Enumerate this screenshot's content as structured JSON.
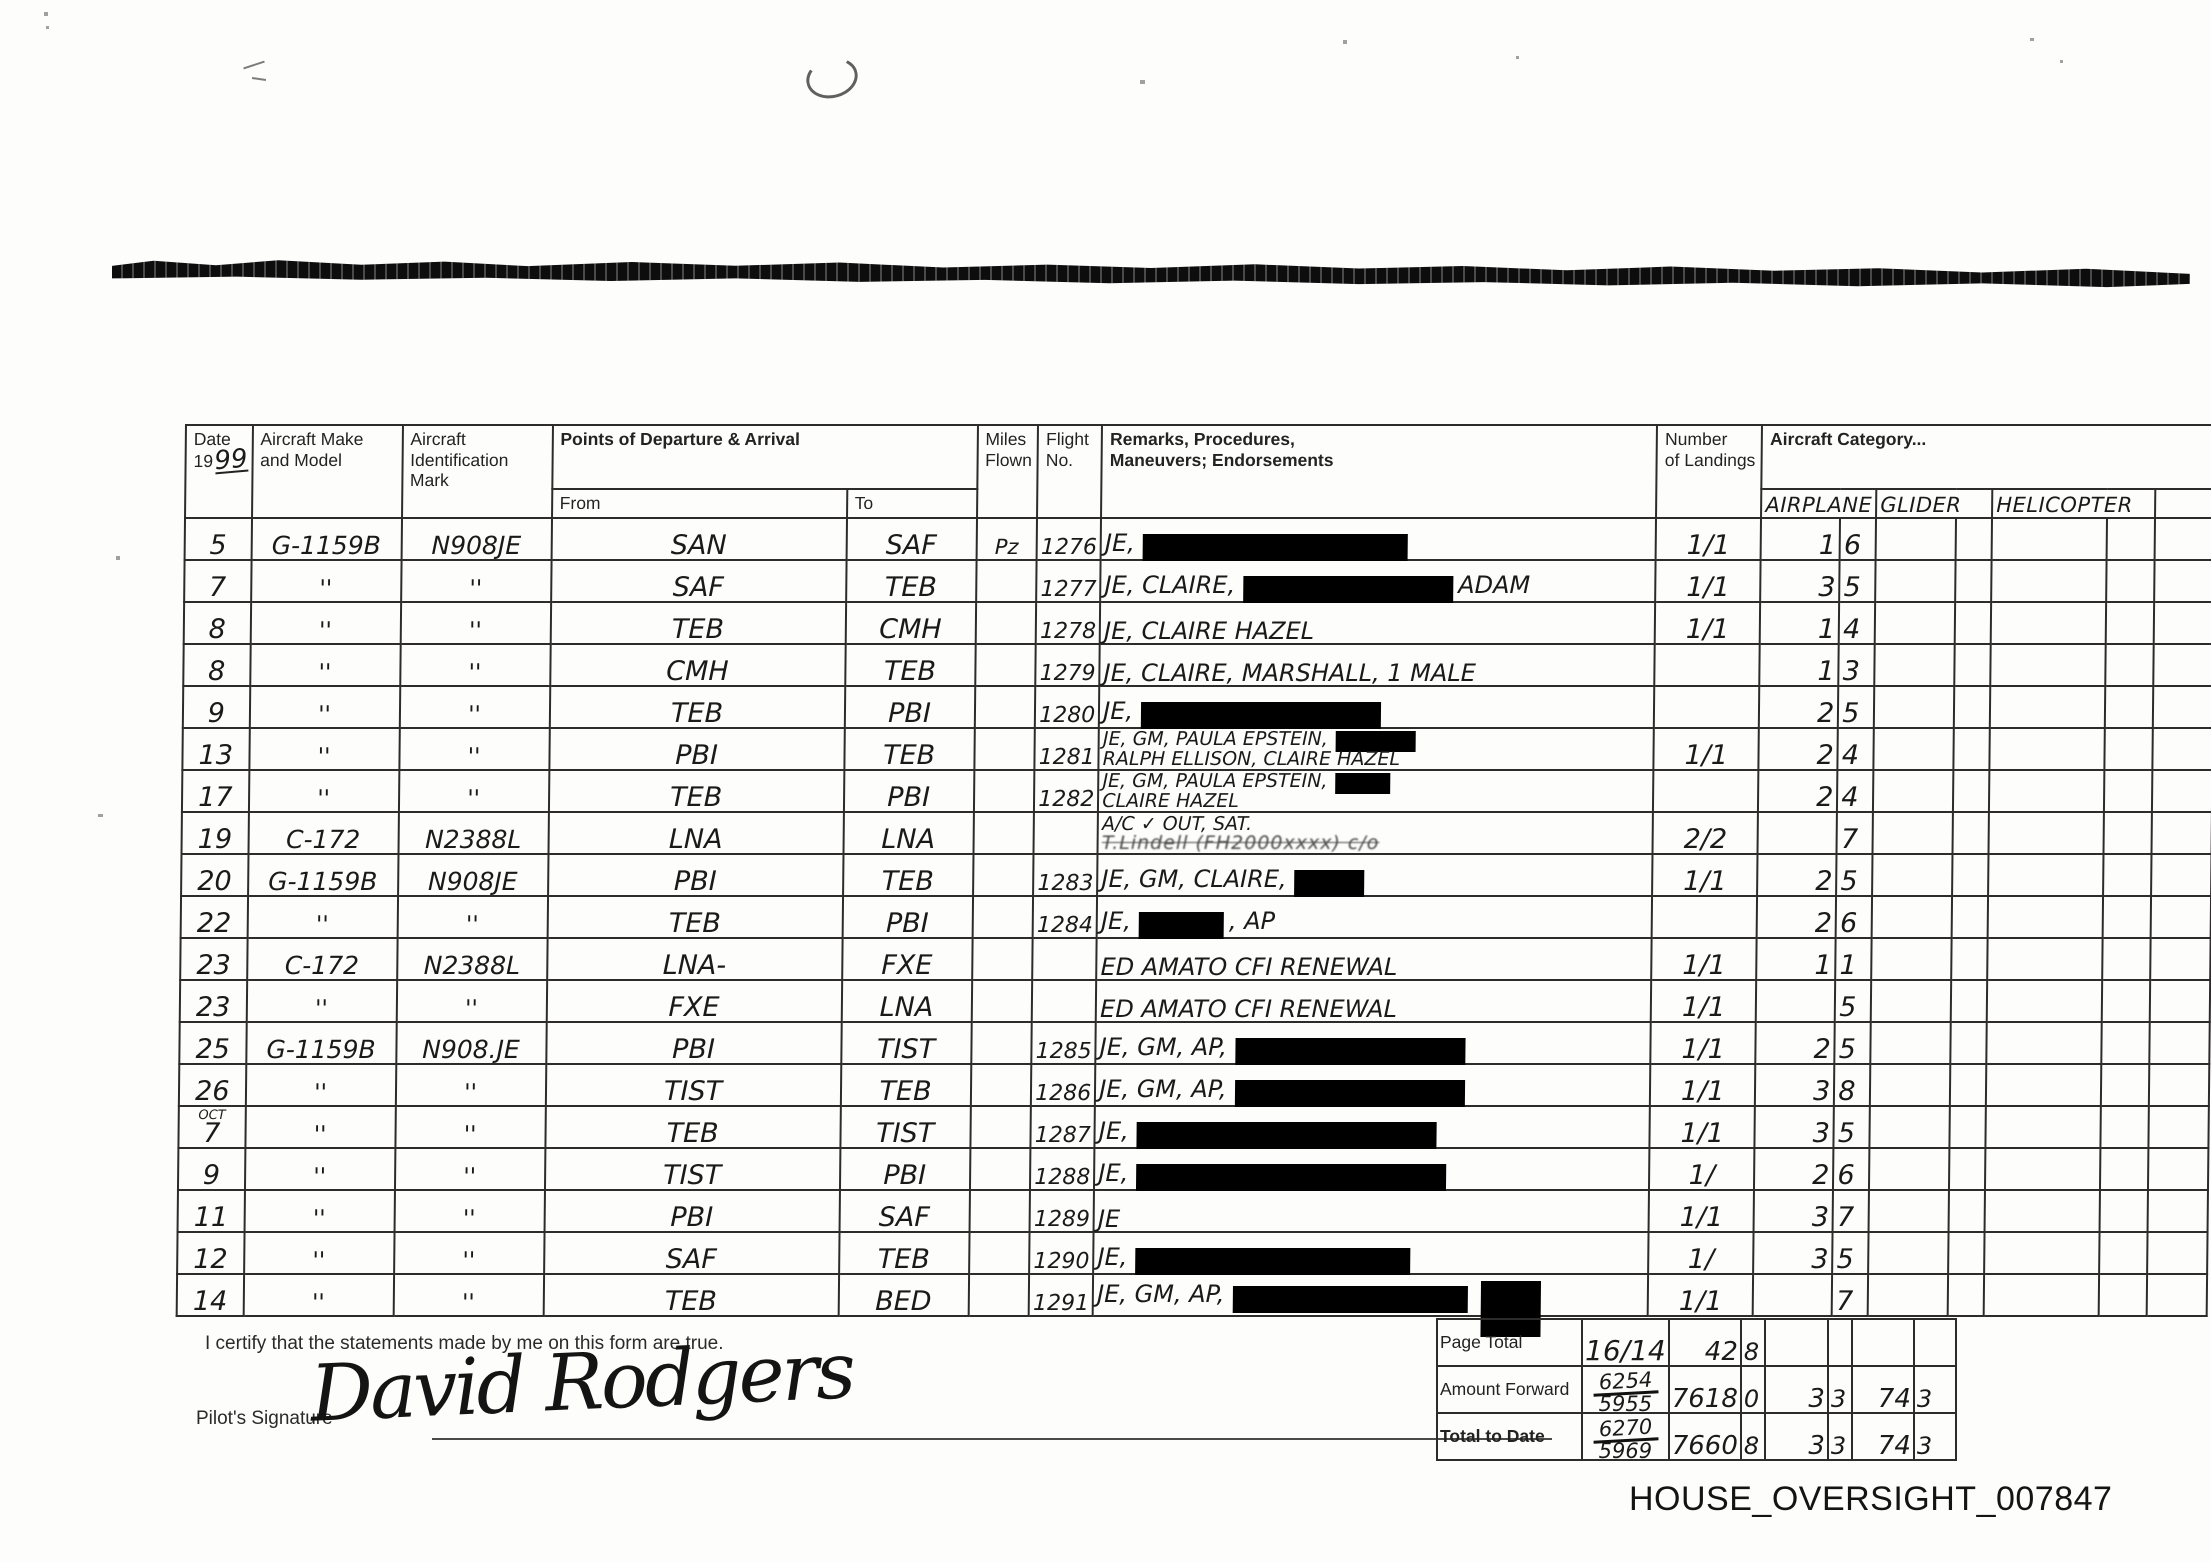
{
  "header": {
    "date_label": "Date",
    "date_year_prefix": "19",
    "date_year_hw": "99",
    "make": "Aircraft Make\nand Model",
    "ident": "Aircraft\nIdentification Mark",
    "points": "Points of Departure & Arrival",
    "from": "From",
    "to": "To",
    "miles": "Miles\nFlown",
    "flight": "Flight\nNo.",
    "remarks": "Remarks, Procedures,\nManeuvers; Endorsements",
    "landings": "Number\nof Landings",
    "category": "Aircraft Category...",
    "cat_airplane": "AIRPLANE",
    "cat_glider": "GLIDER",
    "cat_helicopter": "HELICOPTER"
  },
  "rows": [
    {
      "date": "5",
      "make": "G-1159B",
      "ident": "N908JE",
      "from": "SAN",
      "to": "SAF",
      "miles": "Pz",
      "flight": "1276",
      "remarks": [
        {
          "t1": "JE,",
          "r": 265
        }
      ],
      "landings": "1/1",
      "airplane_h": "1",
      "airplane_t": "6"
    },
    {
      "date": "7",
      "make": "''",
      "ident": "''",
      "from": "SAF",
      "to": "TEB",
      "miles": "",
      "flight": "1277",
      "remarks": [
        {
          "t1": "JE, CLAIRE,",
          "r": 210,
          "t2": "ADAM"
        }
      ],
      "landings": "1/1",
      "airplane_h": "3",
      "airplane_t": "5"
    },
    {
      "date": "8",
      "make": "''",
      "ident": "''",
      "from": "TEB",
      "to": "CMH",
      "miles": "",
      "flight": "1278",
      "remarks": [
        {
          "t1": "JE, CLAIRE HAZEL"
        }
      ],
      "landings": "1/1",
      "airplane_h": "1",
      "airplane_t": "4"
    },
    {
      "date": "8",
      "make": "''",
      "ident": "''",
      "from": "CMH",
      "to": "TEB",
      "miles": "",
      "flight": "1279",
      "remarks": [
        {
          "t1": "JE, CLAIRE, MARSHALL, 1 MALE"
        }
      ],
      "landings": "",
      "airplane_h": "1",
      "airplane_t": "3"
    },
    {
      "date": "9",
      "make": "''",
      "ident": "''",
      "from": "TEB",
      "to": "PBI",
      "miles": "",
      "flight": "1280",
      "remarks": [
        {
          "t1": "JE,",
          "r": 240
        }
      ],
      "landings": "",
      "airplane_h": "2",
      "airplane_t": "5"
    },
    {
      "date": "13",
      "make": "''",
      "ident": "''",
      "from": "PBI",
      "to": "TEB",
      "miles": "",
      "flight": "1281",
      "remarks": [
        {
          "t1": "JE, GM, PAULA EPSTEIN,",
          "r": 80
        },
        {
          "t1": "RALPH ELLISON, CLAIRE HAZEL"
        }
      ],
      "landings": "1/1",
      "airplane_h": "2",
      "airplane_t": "4"
    },
    {
      "date": "17",
      "make": "''",
      "ident": "''",
      "from": "TEB",
      "to": "PBI",
      "miles": "",
      "flight": "1282",
      "remarks": [
        {
          "t1": "JE, GM, PAULA EPSTEIN,",
          "r": 55
        },
        {
          "t1": "CLAIRE HAZEL"
        }
      ],
      "landings": "",
      "airplane_h": "2",
      "airplane_t": "4"
    },
    {
      "date": "19",
      "make": "C-172",
      "ident": "N2388L",
      "from": "LNA",
      "to": "LNA",
      "miles": "",
      "flight": "",
      "remarks": [
        {
          "t1": "A/C ✓ OUT, SAT."
        },
        {
          "t1": "T.Lindell (FH2000xxxx) c/o",
          "scribble": true
        }
      ],
      "landings": "2/2",
      "airplane_h": "",
      "airplane_t": "7"
    },
    {
      "date": "20",
      "make": "G-1159B",
      "ident": "N908JE",
      "from": "PBI",
      "to": "TEB",
      "miles": "",
      "flight": "1283",
      "remarks": [
        {
          "t1": "JE, GM, CLAIRE,",
          "r": 70
        }
      ],
      "landings": "1/1",
      "airplane_h": "2",
      "airplane_t": "5"
    },
    {
      "date": "22",
      "make": "''",
      "ident": "''",
      "from": "TEB",
      "to": "PBI",
      "miles": "",
      "flight": "1284",
      "remarks": [
        {
          "t1": "JE,",
          "r": 85,
          "t2": ", AP"
        }
      ],
      "landings": "",
      "airplane_h": "2",
      "airplane_t": "6"
    },
    {
      "date": "23",
      "make": "C-172",
      "ident": "N2388L",
      "from": "LNA-",
      "to": "FXE",
      "miles": "",
      "flight": "",
      "remarks": [
        {
          "t1": "ED AMATO CFI RENEWAL"
        }
      ],
      "landings": "1/1",
      "airplane_h": "1",
      "airplane_t": "1"
    },
    {
      "date": "23",
      "make": "''",
      "ident": "''",
      "from": "FXE",
      "to": "LNA",
      "miles": "",
      "flight": "",
      "remarks": [
        {
          "t1": "ED AMATO CFI RENEWAL"
        }
      ],
      "landings": "1/1",
      "airplane_h": "",
      "airplane_t": "5"
    },
    {
      "date": "25",
      "make": "G-1159B",
      "ident": "N908.JE",
      "from": "PBI",
      "to": "TIST",
      "miles": "",
      "flight": "1285",
      "remarks": [
        {
          "t1": "JE, GM, AP,",
          "r": 230
        }
      ],
      "landings": "1/1",
      "airplane_h": "2",
      "airplane_t": "5"
    },
    {
      "date": "26",
      "make": "''",
      "ident": "''",
      "from": "TIST",
      "to": "TEB",
      "miles": "",
      "flight": "1286",
      "remarks": [
        {
          "t1": "JE, GM, AP,",
          "r": 230
        }
      ],
      "landings": "1/1",
      "airplane_h": "3",
      "airplane_t": "8"
    },
    {
      "date": "OCT\n7",
      "make": "''",
      "ident": "''",
      "from": "TEB",
      "to": "TIST",
      "miles": "",
      "flight": "1287",
      "remarks": [
        {
          "t1": "JE,",
          "r": 300
        }
      ],
      "landings": "1/1",
      "airplane_h": "3",
      "airplane_t": "5"
    },
    {
      "date": "9",
      "make": "''",
      "ident": "''",
      "from": "TIST",
      "to": "PBI",
      "miles": "",
      "flight": "1288",
      "remarks": [
        {
          "t1": "JE,",
          "r": 310
        }
      ],
      "landings": "1/",
      "airplane_h": "2",
      "airplane_t": "6"
    },
    {
      "date": "11",
      "make": "''",
      "ident": "''",
      "from": "PBI",
      "to": "SAF",
      "miles": "",
      "flight": "1289",
      "remarks": [
        {
          "t1": "JE"
        }
      ],
      "landings": "1/1",
      "airplane_h": "3",
      "airplane_t": "7"
    },
    {
      "date": "12",
      "make": "''",
      "ident": "''",
      "from": "SAF",
      "to": "TEB",
      "miles": "",
      "flight": "1290",
      "remarks": [
        {
          "t1": "JE,",
          "r": 275
        }
      ],
      "landings": "1/",
      "airplane_h": "3",
      "airplane_t": "5"
    },
    {
      "date": "14",
      "make": "''",
      "ident": "''",
      "from": "TEB",
      "to": "BED",
      "miles": "",
      "flight": "1291",
      "remarks": [
        {
          "t1": "JE, GM, AP,",
          "r": 235,
          "tall": true
        }
      ],
      "landings": "1/1",
      "airplane_h": "",
      "airplane_t": "7"
    }
  ],
  "totals": {
    "page_total": {
      "label": "Page Total",
      "landings": "16/14",
      "airplane_h": "42",
      "airplane_t": "8",
      "glider_h": "",
      "glider_t": "",
      "helicopter_h": "",
      "helicopter_t": ""
    },
    "amount_forward": {
      "label": "Amount Forward",
      "landings_top": "6254",
      "landings_bottom": "5955",
      "airplane_h": "7618",
      "airplane_t": "0",
      "glider_h": "3",
      "glider_t": "3",
      "helicopter_h": "74",
      "helicopter_t": "3"
    },
    "total_to_date": {
      "label": "Total to Date",
      "landings_top": "6270",
      "landings_bottom": "5969",
      "airplane_h": "7660",
      "airplane_t": "8",
      "glider_h": "3",
      "glider_t": "3",
      "helicopter_h": "74",
      "helicopter_t": "3"
    }
  },
  "footer": {
    "certify": "I certify that the statements made by me on this form are true.",
    "signature_label": "Pilot's Signature",
    "signature": "David Rodgers",
    "doc_id": "HOUSE_OVERSIGHT_007847"
  }
}
